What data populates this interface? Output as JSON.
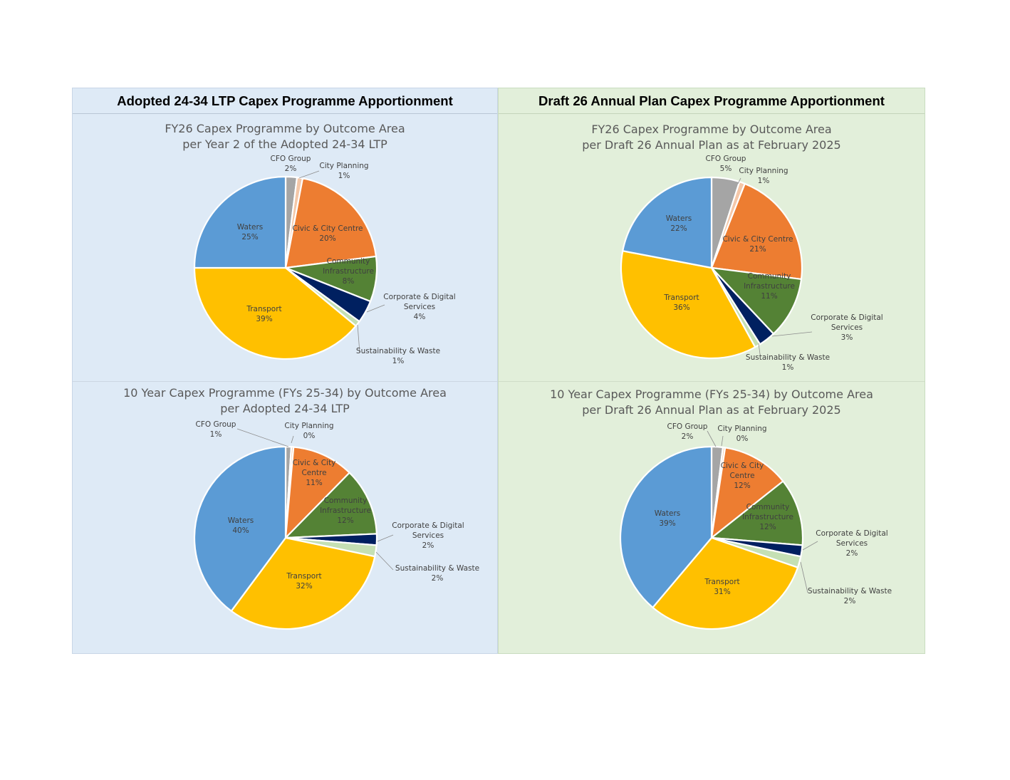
{
  "headers": {
    "left": "Adopted 24-34 LTP Capex Programme Apportionment",
    "right": "Draft 26 Annual Plan Capex Programme Apportionment"
  },
  "colors": {
    "CFO Group": "#a5a5a5",
    "City Planning": "#f4c7a8",
    "Civic & City Centre": "#ed7d31",
    "Community Infrastructure": "#548235",
    "Corporate & Digital Services": "#002060",
    "Sustainability & Waste": "#c5e0b4",
    "Transport": "#ffc000",
    "Waters": "#5b9bd5"
  },
  "chart_data": [
    {
      "type": "pie",
      "title_lines": [
        "FY26 Capex Programme by Outcome Area",
        "per Year 2 of the Adopted 24-34 LTP"
      ],
      "slices": [
        {
          "label": "CFO Group",
          "value": 2,
          "pct": "2%"
        },
        {
          "label": "City Planning",
          "value": 1,
          "pct": "1%"
        },
        {
          "label": "Civic & City Centre",
          "value": 20,
          "pct": "20%"
        },
        {
          "label": "Community Infrastructure",
          "value": 8,
          "pct": "8%"
        },
        {
          "label": "Corporate & Digital Services",
          "value": 4,
          "pct": "4%"
        },
        {
          "label": "Sustainability & Waste",
          "value": 1,
          "pct": "1%"
        },
        {
          "label": "Transport",
          "value": 39,
          "pct": "39%"
        },
        {
          "label": "Waters",
          "value": 25,
          "pct": "25%"
        }
      ]
    },
    {
      "type": "pie",
      "title_lines": [
        "FY26 Capex Programme by Outcome Area",
        "per Draft 26 Annual Plan as at February 2025"
      ],
      "slices": [
        {
          "label": "CFO Group",
          "value": 5,
          "pct": "5%"
        },
        {
          "label": "City Planning",
          "value": 1,
          "pct": "1%"
        },
        {
          "label": "Civic & City Centre",
          "value": 21,
          "pct": "21%"
        },
        {
          "label": "Community Infrastructure",
          "value": 11,
          "pct": "11%"
        },
        {
          "label": "Corporate & Digital Services",
          "value": 3,
          "pct": "3%"
        },
        {
          "label": "Sustainability & Waste",
          "value": 1,
          "pct": "1%"
        },
        {
          "label": "Transport",
          "value": 36,
          "pct": "36%"
        },
        {
          "label": "Waters",
          "value": 22,
          "pct": "22%"
        }
      ]
    },
    {
      "type": "pie",
      "title_lines": [
        "10 Year Capex Programme (FYs 25-34) by Outcome Area",
        "per Adopted 24-34 LTP"
      ],
      "slices": [
        {
          "label": "CFO Group",
          "value": 1,
          "pct": "1%"
        },
        {
          "label": "City Planning",
          "value": 0.4,
          "pct": "0%"
        },
        {
          "label": "Civic & City Centre",
          "value": 11,
          "pct": "11%"
        },
        {
          "label": "Community Infrastructure",
          "value": 12,
          "pct": "12%"
        },
        {
          "label": "Corporate & Digital Services",
          "value": 2,
          "pct": "2%"
        },
        {
          "label": "Sustainability & Waste",
          "value": 2,
          "pct": "2%"
        },
        {
          "label": "Transport",
          "value": 32,
          "pct": "32%"
        },
        {
          "label": "Waters",
          "value": 40,
          "pct": "40%"
        }
      ]
    },
    {
      "type": "pie",
      "title_lines": [
        "10 Year Capex Programme (FYs 25-34) by Outcome Area",
        "per Draft 26 Annual Plan as at February 2025"
      ],
      "slices": [
        {
          "label": "CFO Group",
          "value": 2,
          "pct": "2%"
        },
        {
          "label": "City Planning",
          "value": 0.4,
          "pct": "0%"
        },
        {
          "label": "Civic & City Centre",
          "value": 12,
          "pct": "12%"
        },
        {
          "label": "Community Infrastructure",
          "value": 12,
          "pct": "12%"
        },
        {
          "label": "Corporate & Digital Services",
          "value": 2,
          "pct": "2%"
        },
        {
          "label": "Sustainability & Waste",
          "value": 2,
          "pct": "2%"
        },
        {
          "label": "Transport",
          "value": 31,
          "pct": "31%"
        },
        {
          "label": "Waters",
          "value": 39,
          "pct": "39%"
        }
      ]
    }
  ]
}
